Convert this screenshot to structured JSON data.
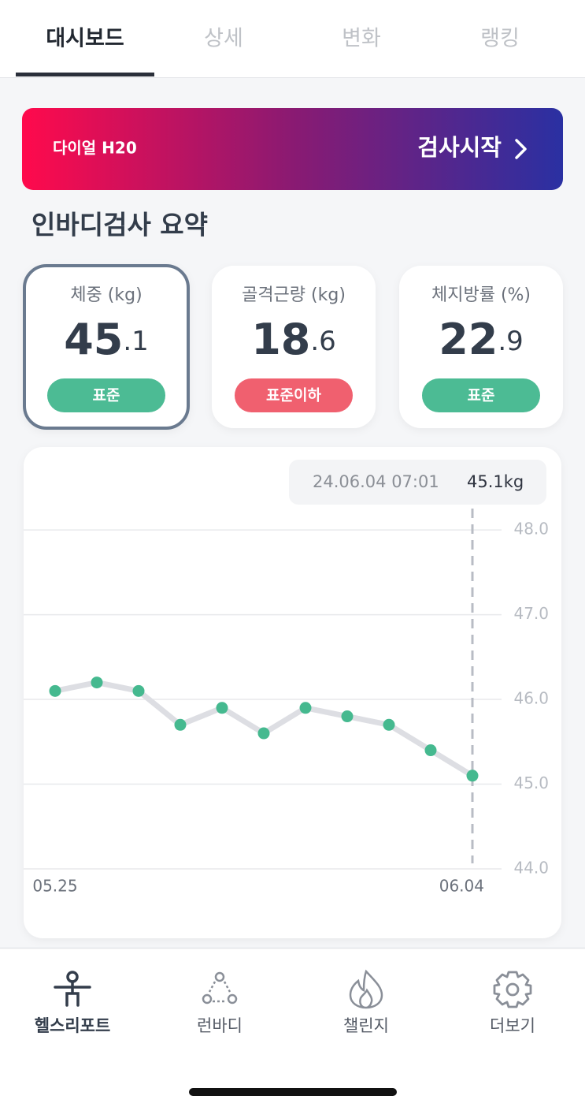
{
  "tabs": [
    "대시보드",
    "상세",
    "변화",
    "랭킹"
  ],
  "banner": {
    "device": "다이얼 H20",
    "action": "검사시작"
  },
  "summary": {
    "title": "인바디검사 요약",
    "cards": [
      {
        "label": "체중 (kg)",
        "int": "45",
        "dec": ".1",
        "status": "표준",
        "status_color": "#4cbb94"
      },
      {
        "label": "골격근량 (kg)",
        "int": "18",
        "dec": ".6",
        "status": "표준이하",
        "status_color": "#f0606f"
      },
      {
        "label": "체지방률 (%)",
        "int": "22",
        "dec": ".9",
        "status": "표준",
        "status_color": "#4cbb94"
      }
    ]
  },
  "chart_data": {
    "type": "line",
    "categories": [
      "05.25",
      null,
      null,
      null,
      null,
      null,
      null,
      null,
      null,
      null,
      "06.04"
    ],
    "values": [
      46.1,
      46.2,
      46.1,
      45.7,
      45.9,
      45.6,
      45.9,
      45.8,
      45.7,
      45.4,
      45.1
    ],
    "color": "#45b98f",
    "line_color": "#dddee3",
    "ylim": [
      44,
      48.15
    ],
    "yticks": [
      {
        "value": 44,
        "label": "44.0"
      },
      {
        "value": 45,
        "label": "45.0"
      },
      {
        "value": 46,
        "label": "46.0"
      },
      {
        "value": 47,
        "label": "47.0"
      },
      {
        "value": 48,
        "label": "48.0"
      }
    ],
    "grid": true,
    "tooltip": {
      "date": "24.06.04 07:01",
      "value": "45.1kg"
    }
  },
  "nav": [
    "헬스리포트",
    "런바디",
    "챌린지",
    "더보기"
  ]
}
